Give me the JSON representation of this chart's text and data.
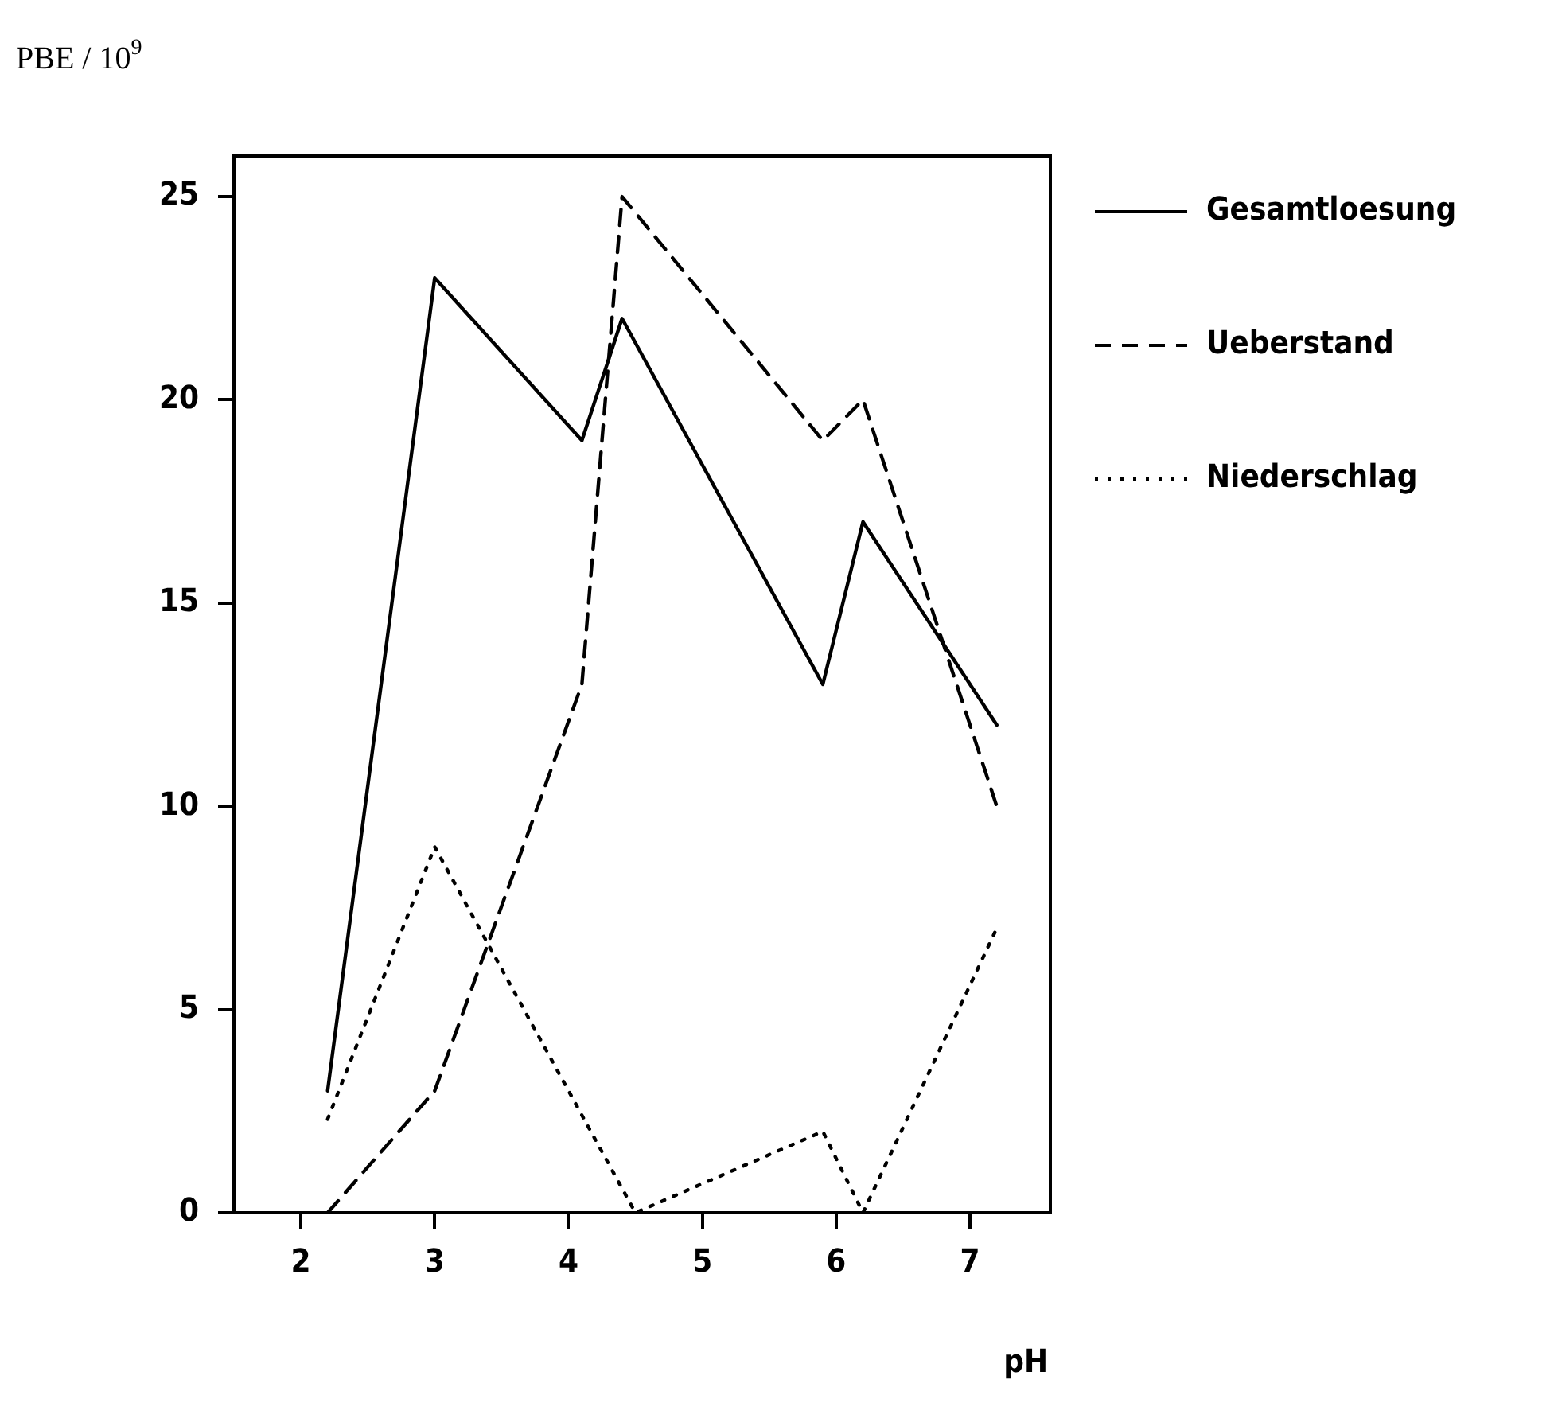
{
  "chart_data": {
    "type": "line",
    "xlabel": "pH",
    "ylabel": "PBE / 10$^{9}$",
    "xlim": [
      1.5,
      7.6
    ],
    "xticks": [
      2,
      3,
      4,
      5,
      6,
      7
    ],
    "ylim": [
      0,
      26
    ],
    "yticks": [
      0,
      5,
      10,
      15,
      20,
      25
    ],
    "legend": "right",
    "marker": "none",
    "series": [
      {
        "name": "Gesamtloesung",
        "color": "#000000",
        "line_style": "solid",
        "x": [
          2.2,
          3.0,
          4.1,
          4.4,
          5.9,
          6.2,
          7.2
        ],
        "values": [
          3,
          23,
          19,
          22,
          13,
          17,
          12
        ]
      },
      {
        "name": "Ueberstand",
        "color": "#000000",
        "line_style": "dashed",
        "x": [
          2.2,
          3.0,
          4.1,
          4.4,
          5.9,
          6.2,
          7.2
        ],
        "values": [
          0,
          3,
          13,
          25,
          19,
          20,
          10
        ]
      },
      {
        "name": "Niederschlag",
        "color": "#000000",
        "line_style": "dotted",
        "x": [
          2.2,
          3.0,
          4.5,
          5.9,
          6.2,
          7.2
        ],
        "values": [
          2.3,
          9,
          0,
          2,
          0,
          7
        ]
      }
    ]
  }
}
